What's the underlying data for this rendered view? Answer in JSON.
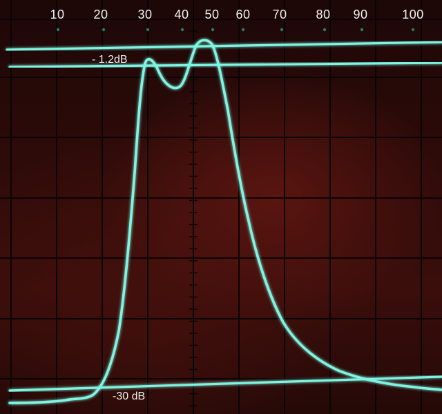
{
  "scale_labels": [
    "10",
    "20",
    "30",
    "40",
    "50",
    "60",
    "70",
    "80",
    "90",
    "100"
  ],
  "level_labels": {
    "top": "- 1.2dB",
    "bottom": "-30 dB"
  },
  "colors": {
    "trace": "#7ef5e2",
    "trace_glow": "#2fd8c0",
    "grid": "#0c0404",
    "label": "#f2f2ee"
  }
}
